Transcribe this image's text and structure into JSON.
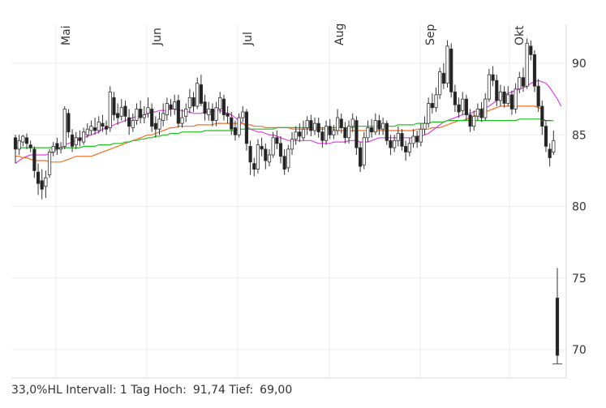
{
  "chart_data": {
    "type": "candlestick",
    "x_months": [
      "Mai",
      "Jun",
      "Jul",
      "Aug",
      "Sep",
      "Okt"
    ],
    "y_ticks": [
      70,
      75,
      80,
      85,
      90
    ],
    "ylim": [
      68,
      92.5
    ],
    "grid": true,
    "candles": [
      [
        84.8,
        84.0,
        85.0,
        83.0
      ],
      [
        84.0,
        84.6,
        85.0,
        83.6
      ],
      [
        84.5,
        84.9,
        85.0,
        84.2
      ],
      [
        84.8,
        84.4,
        85.1,
        84.0
      ],
      [
        84.3,
        84.1,
        84.6,
        83.8
      ],
      [
        84.0,
        82.5,
        84.2,
        82.0
      ],
      [
        82.4,
        81.6,
        83.0,
        80.8
      ],
      [
        81.8,
        81.2,
        82.6,
        80.5
      ],
      [
        81.4,
        82.0,
        82.5,
        80.6
      ],
      [
        82.2,
        83.8,
        84.0,
        82.0
      ],
      [
        83.8,
        84.2,
        84.5,
        83.5
      ],
      [
        84.4,
        84.0,
        84.8,
        83.6
      ],
      [
        84.0,
        84.1,
        84.5,
        83.7
      ],
      [
        84.2,
        86.8,
        87.0,
        84.0
      ],
      [
        86.5,
        85.2,
        86.8,
        84.8
      ],
      [
        85.0,
        84.2,
        85.4,
        83.8
      ],
      [
        84.3,
        84.8,
        85.2,
        84.0
      ],
      [
        84.8,
        84.6,
        85.3,
        84.2
      ],
      [
        84.5,
        85.2,
        85.5,
        84.3
      ],
      [
        85.0,
        85.4,
        85.8,
        84.8
      ],
      [
        85.3,
        85.6,
        86.0,
        85.0
      ],
      [
        85.5,
        85.3,
        86.2,
        85.0
      ],
      [
        85.3,
        85.9,
        86.3,
        85.1
      ],
      [
        85.8,
        85.6,
        86.4,
        85.2
      ],
      [
        85.6,
        85.4,
        86.0,
        85.0
      ],
      [
        85.5,
        88.0,
        88.4,
        85.2
      ],
      [
        87.6,
        86.4,
        88.0,
        86.0
      ],
      [
        86.5,
        86.2,
        87.2,
        85.7
      ],
      [
        86.3,
        86.9,
        87.5,
        86.0
      ],
      [
        87.0,
        86.3,
        87.4,
        85.9
      ],
      [
        86.2,
        85.6,
        86.8,
        85.0
      ],
      [
        85.5,
        86.0,
        86.5,
        85.2
      ],
      [
        86.0,
        86.8,
        87.2,
        85.7
      ],
      [
        86.8,
        86.2,
        87.4,
        85.8
      ],
      [
        86.2,
        86.4,
        87.0,
        85.8
      ],
      [
        86.5,
        86.9,
        87.6,
        86.2
      ],
      [
        86.8,
        85.6,
        87.2,
        85.2
      ],
      [
        85.8,
        85.4,
        86.3,
        84.8
      ],
      [
        85.4,
        86.1,
        86.6,
        85.0
      ],
      [
        86.0,
        86.5,
        87.2,
        85.6
      ],
      [
        86.4,
        87.2,
        87.6,
        86.0
      ],
      [
        87.1,
        86.8,
        87.5,
        86.3
      ],
      [
        86.8,
        87.3,
        87.8,
        86.4
      ],
      [
        87.4,
        85.8,
        87.8,
        85.5
      ],
      [
        85.8,
        86.2,
        86.8,
        85.5
      ],
      [
        86.3,
        86.8,
        87.2,
        85.9
      ],
      [
        86.9,
        87.6,
        88.2,
        86.5
      ],
      [
        87.6,
        87.0,
        88.0,
        86.6
      ],
      [
        87.0,
        88.6,
        89.0,
        86.8
      ],
      [
        88.5,
        87.2,
        89.2,
        87.0
      ],
      [
        87.3,
        86.5,
        87.8,
        86.0
      ],
      [
        86.4,
        86.8,
        87.3,
        86.0
      ],
      [
        86.8,
        86.0,
        87.2,
        85.6
      ],
      [
        86.0,
        86.9,
        87.3,
        85.6
      ],
      [
        86.8,
        87.6,
        88.0,
        86.5
      ],
      [
        87.5,
        86.4,
        87.8,
        86.0
      ],
      [
        86.5,
        86.3,
        87.0,
        85.8
      ],
      [
        86.2,
        85.4,
        86.6,
        85.0
      ],
      [
        85.5,
        85.0,
        86.0,
        84.6
      ],
      [
        85.0,
        86.2,
        86.5,
        84.8
      ],
      [
        86.2,
        86.6,
        87.0,
        85.9
      ],
      [
        86.6,
        84.4,
        86.8,
        83.9
      ],
      [
        84.2,
        83.1,
        84.6,
        82.2
      ],
      [
        83.0,
        82.6,
        83.4,
        82.1
      ],
      [
        82.6,
        84.3,
        84.7,
        82.3
      ],
      [
        84.2,
        84.0,
        84.8,
        83.5
      ],
      [
        84.0,
        83.2,
        84.4,
        82.6
      ],
      [
        83.1,
        83.6,
        84.0,
        82.8
      ],
      [
        83.6,
        84.8,
        85.2,
        83.4
      ],
      [
        84.8,
        84.4,
        85.3,
        84.0
      ],
      [
        84.4,
        83.5,
        84.9,
        83.0
      ],
      [
        83.5,
        82.6,
        84.0,
        82.2
      ],
      [
        82.7,
        84.0,
        84.3,
        82.4
      ],
      [
        84.0,
        84.7,
        85.2,
        83.6
      ],
      [
        84.7,
        85.2,
        85.6,
        84.3
      ],
      [
        85.2,
        84.9,
        85.8,
        84.5
      ],
      [
        84.8,
        85.4,
        86.0,
        84.6
      ],
      [
        85.5,
        86.0,
        86.3,
        85.0
      ],
      [
        86.0,
        85.3,
        86.4,
        84.9
      ],
      [
        85.3,
        85.8,
        86.2,
        85.0
      ],
      [
        85.8,
        85.2,
        86.2,
        84.8
      ],
      [
        85.2,
        84.6,
        85.5,
        84.1
      ],
      [
        84.6,
        85.6,
        86.0,
        84.3
      ],
      [
        85.6,
        85.0,
        86.1,
        84.7
      ],
      [
        85.0,
        85.3,
        85.7,
        84.7
      ],
      [
        85.3,
        86.2,
        86.8,
        85.0
      ],
      [
        86.1,
        85.5,
        86.5,
        85.1
      ],
      [
        85.5,
        84.8,
        85.9,
        84.4
      ],
      [
        84.8,
        85.6,
        86.0,
        84.4
      ],
      [
        85.6,
        86.1,
        86.5,
        85.2
      ],
      [
        86.0,
        84.1,
        86.3,
        83.6
      ],
      [
        84.1,
        82.8,
        84.5,
        82.4
      ],
      [
        82.9,
        84.8,
        85.2,
        82.6
      ],
      [
        84.8,
        85.5,
        86.0,
        84.5
      ],
      [
        85.5,
        85.2,
        86.1,
        84.8
      ],
      [
        85.2,
        86.0,
        86.5,
        85.0
      ],
      [
        86.0,
        85.4,
        86.4,
        85.0
      ],
      [
        85.4,
        85.8,
        86.2,
        85.0
      ],
      [
        85.8,
        84.6,
        86.0,
        84.3
      ],
      [
        84.6,
        84.1,
        85.0,
        83.6
      ],
      [
        84.1,
        84.6,
        85.0,
        83.8
      ],
      [
        84.6,
        85.1,
        85.6,
        84.2
      ],
      [
        85.1,
        84.2,
        85.4,
        83.9
      ],
      [
        84.2,
        83.8,
        84.6,
        83.2
      ],
      [
        83.8,
        84.4,
        84.8,
        83.5
      ],
      [
        84.4,
        84.9,
        85.4,
        84.1
      ],
      [
        84.9,
        84.5,
        85.3,
        84.1
      ],
      [
        84.5,
        85.4,
        85.8,
        84.2
      ],
      [
        85.4,
        85.8,
        86.3,
        85.0
      ],
      [
        85.8,
        87.2,
        87.6,
        85.5
      ],
      [
        87.2,
        86.9,
        87.9,
        86.5
      ],
      [
        86.9,
        87.8,
        88.3,
        86.6
      ],
      [
        87.8,
        89.4,
        89.7,
        87.5
      ],
      [
        89.3,
        88.6,
        90.0,
        88.2
      ],
      [
        88.6,
        91.2,
        91.6,
        88.3
      ],
      [
        91.0,
        88.0,
        91.4,
        87.6
      ],
      [
        88.0,
        87.1,
        88.5,
        86.6
      ],
      [
        87.1,
        86.6,
        87.6,
        86.2
      ],
      [
        86.7,
        87.5,
        88.0,
        86.4
      ],
      [
        87.5,
        86.4,
        87.8,
        86.0
      ],
      [
        86.4,
        85.6,
        86.8,
        85.2
      ],
      [
        85.6,
        86.3,
        86.7,
        85.3
      ],
      [
        86.3,
        86.8,
        87.2,
        86.0
      ],
      [
        86.8,
        86.2,
        87.3,
        85.9
      ],
      [
        86.2,
        87.5,
        87.9,
        86.0
      ],
      [
        87.5,
        89.2,
        89.6,
        87.3
      ],
      [
        89.2,
        88.8,
        89.8,
        88.4
      ],
      [
        88.8,
        87.4,
        89.2,
        87.0
      ],
      [
        87.4,
        88.0,
        88.5,
        87.0
      ],
      [
        88.0,
        87.2,
        88.4,
        86.9
      ],
      [
        87.2,
        87.8,
        88.4,
        87.0
      ],
      [
        87.8,
        86.8,
        88.1,
        86.4
      ],
      [
        86.8,
        88.2,
        88.6,
        86.5
      ],
      [
        88.2,
        89.0,
        89.4,
        87.9
      ],
      [
        89.0,
        88.4,
        89.7,
        88.0
      ],
      [
        88.4,
        91.4,
        91.74,
        88.2
      ],
      [
        91.2,
        90.6,
        91.6,
        90.2
      ],
      [
        90.6,
        88.4,
        90.9,
        88.0
      ],
      [
        88.4,
        87.0,
        88.9,
        86.6
      ],
      [
        87.0,
        85.6,
        87.4,
        85.0
      ],
      [
        85.6,
        84.2,
        86.0,
        83.8
      ],
      [
        84.0,
        83.4,
        84.4,
        82.8
      ],
      [
        83.8,
        84.6,
        85.3,
        83.6
      ],
      [
        73.6,
        69.6,
        75.7,
        69.0
      ]
    ],
    "moving_averages": [
      {
        "color": "#e040e0",
        "values": [
          83.0,
          83.2,
          83.4,
          83.5,
          83.6,
          83.6,
          83.6,
          83.6,
          83.6,
          83.7,
          83.8,
          84.0,
          84.1,
          84.3,
          84.4,
          84.5,
          84.6,
          84.7,
          84.8,
          84.9,
          85.0,
          85.1,
          85.2,
          85.4,
          85.5,
          85.6,
          85.7,
          85.8,
          85.9,
          86.0,
          86.1,
          86.2,
          86.3,
          86.3,
          86.4,
          86.5,
          86.6,
          86.6,
          86.7,
          86.7,
          86.7,
          86.8,
          86.8,
          86.7,
          86.7,
          86.6,
          86.6,
          86.5,
          86.5,
          86.5,
          86.6,
          86.6,
          86.6,
          86.7,
          86.7,
          86.6,
          86.5,
          86.4,
          86.2,
          86.0,
          85.8,
          85.6,
          85.4,
          85.3,
          85.2,
          85.2,
          85.1,
          85.0,
          85.0,
          84.9,
          84.8,
          84.7,
          84.6,
          84.6,
          84.6,
          84.6,
          84.6,
          84.6,
          84.6,
          84.5,
          84.4,
          84.4,
          84.4,
          84.4,
          84.5,
          84.5,
          84.5,
          84.5,
          84.6,
          84.6,
          84.6,
          84.5,
          84.5,
          84.5,
          84.6,
          84.7,
          84.8,
          84.8,
          84.8,
          84.8,
          84.8,
          84.8,
          84.8,
          84.8,
          84.8,
          84.8,
          84.9,
          84.9,
          85.0,
          85.1,
          85.3,
          85.5,
          85.7,
          85.9,
          86.0,
          86.1,
          86.2,
          86.3,
          86.4,
          86.5,
          86.5,
          86.6,
          86.7,
          86.8,
          86.9,
          87.0,
          87.2,
          87.4,
          87.6,
          87.8,
          87.9,
          88.0,
          88.1,
          88.2,
          88.3,
          88.4,
          88.6,
          88.7,
          88.8,
          88.7,
          88.6,
          88.3,
          87.9,
          87.5,
          87.0
        ]
      },
      {
        "color": "#f07020",
        "values": [
          83.5,
          83.5,
          83.4,
          83.4,
          83.3,
          83.2,
          83.2,
          83.2,
          83.2,
          83.1,
          83.1,
          83.1,
          83.1,
          83.2,
          83.3,
          83.4,
          83.5,
          83.5,
          83.5,
          83.5,
          83.5,
          83.6,
          83.7,
          83.8,
          83.9,
          84.0,
          84.1,
          84.2,
          84.3,
          84.4,
          84.5,
          84.6,
          84.7,
          84.8,
          84.9,
          85.0,
          85.0,
          85.1,
          85.2,
          85.3,
          85.4,
          85.5,
          85.5,
          85.6,
          85.6,
          85.6,
          85.6,
          85.6,
          85.7,
          85.7,
          85.7,
          85.7,
          85.7,
          85.8,
          85.8,
          85.8,
          85.8,
          85.8,
          85.8,
          85.8,
          85.8,
          85.7,
          85.7,
          85.6,
          85.6,
          85.6,
          85.5,
          85.5,
          85.5,
          85.5,
          85.5,
          85.5,
          85.5,
          85.4,
          85.4,
          85.4,
          85.4,
          85.4,
          85.4,
          85.4,
          85.4,
          85.4,
          85.4,
          85.4,
          85.4,
          85.3,
          85.3,
          85.3,
          85.3,
          85.3,
          85.3,
          85.3,
          85.3,
          85.3,
          85.3,
          85.3,
          85.3,
          85.3,
          85.3,
          85.3,
          85.3,
          85.3,
          85.3,
          85.3,
          85.3,
          85.3,
          85.4,
          85.4,
          85.4,
          85.4,
          85.5,
          85.5,
          85.5,
          85.6,
          85.7,
          85.8,
          85.9,
          86.0,
          86.0,
          86.1,
          86.2,
          86.3,
          86.4,
          86.5,
          86.6,
          86.7,
          86.8,
          86.9,
          87.0,
          87.0,
          87.0,
          87.0,
          87.0,
          87.0,
          87.0,
          87.0,
          87.0,
          87.0,
          86.9,
          86.8
        ]
      },
      {
        "color": "#20c020",
        "values": [
          84.1,
          84.1,
          84.1,
          84.1,
          84.1,
          84.1,
          84.1,
          84.1,
          84.1,
          84.1,
          84.1,
          84.1,
          84.1,
          84.1,
          84.1,
          84.1,
          84.1,
          84.1,
          84.2,
          84.2,
          84.2,
          84.2,
          84.3,
          84.3,
          84.3,
          84.3,
          84.4,
          84.4,
          84.4,
          84.5,
          84.5,
          84.6,
          84.6,
          84.7,
          84.7,
          84.8,
          84.8,
          84.9,
          84.9,
          85.0,
          85.0,
          85.1,
          85.1,
          85.1,
          85.2,
          85.2,
          85.2,
          85.2,
          85.2,
          85.2,
          85.3,
          85.3,
          85.3,
          85.3,
          85.3,
          85.3,
          85.3,
          85.3,
          85.3,
          85.4,
          85.4,
          85.4,
          85.4,
          85.4,
          85.4,
          85.4,
          85.4,
          85.4,
          85.4,
          85.5,
          85.5,
          85.5,
          85.5,
          85.5,
          85.5,
          85.5,
          85.5,
          85.5,
          85.5,
          85.5,
          85.5,
          85.5,
          85.5,
          85.5,
          85.5,
          85.5,
          85.5,
          85.5,
          85.5,
          85.5,
          85.6,
          85.6,
          85.6,
          85.6,
          85.6,
          85.6,
          85.6,
          85.6,
          85.6,
          85.6,
          85.6,
          85.7,
          85.7,
          85.7,
          85.7,
          85.7,
          85.8,
          85.8,
          85.8,
          85.8,
          85.9,
          85.9,
          85.9,
          85.9,
          86.0,
          86.0,
          86.0,
          86.0,
          86.0,
          86.0,
          86.0,
          86.0,
          86.0,
          86.0,
          86.0,
          86.0,
          86.0,
          86.0,
          86.0,
          86.0,
          86.0,
          86.0,
          86.0,
          86.1,
          86.1,
          86.1,
          86.1,
          86.1,
          86.1,
          86.1,
          86.0,
          86.0,
          86.0
        ]
      }
    ]
  },
  "footer": {
    "range": "33,0%HL",
    "interval": "Intervall: 1 Tag",
    "high_label": "Hoch:",
    "high_value": "91,74",
    "low_label": "Tief:",
    "low_value": "69,00"
  }
}
